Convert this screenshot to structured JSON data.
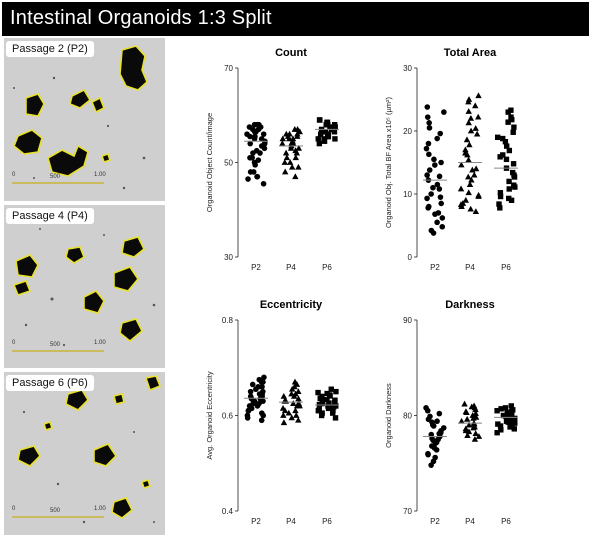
{
  "title": "Intestinal Organoids 1:3 Split",
  "colors": {
    "organoid_outline": "#e8e02a",
    "organoid_fill": "#0a0a0a",
    "background_field": "#cdcdcd"
  },
  "micrographs": [
    {
      "label": "Passage 2 (P2)",
      "scale_labels": [
        "0",
        "500",
        "1.00"
      ]
    },
    {
      "label": "Passage 4 (P4)",
      "scale_labels": [
        "0",
        "500",
        "1.00"
      ]
    },
    {
      "label": "Passage 6 (P6)",
      "scale_labels": [
        "0",
        "500",
        "1.00"
      ]
    }
  ],
  "chart_data": [
    {
      "type": "scatter",
      "title": "Count",
      "ylabel": "Organoid Object Count/image",
      "ylim": [
        30,
        70
      ],
      "yticks": [
        30,
        50,
        70
      ],
      "categories": [
        "P2",
        "P4",
        "P6"
      ],
      "markers": [
        "circle",
        "triangle",
        "square"
      ],
      "means": [
        54.5,
        53.5,
        57
      ],
      "series": [
        {
          "values": [
            45.5,
            46.5,
            47,
            48,
            49.5,
            50.5,
            51,
            52,
            52.5,
            53,
            53.5,
            54,
            54.5,
            55,
            55.5,
            56,
            56.5,
            57,
            57,
            57.5,
            58,
            58,
            58,
            57.5,
            57,
            56.5,
            56,
            55.5,
            55,
            54,
            52,
            51,
            50,
            48,
            47
          ]
        },
        {
          "values": [
            47,
            49,
            50,
            51,
            52,
            52.5,
            53,
            53.5,
            54,
            54,
            54.5,
            55,
            55,
            55.5,
            55.5,
            56,
            56,
            56.5,
            57,
            57,
            56,
            55,
            54,
            53,
            52,
            51,
            50,
            49,
            48
          ]
        },
        {
          "values": [
            54,
            54.5,
            55,
            55,
            55.5,
            55.5,
            56,
            56,
            56,
            56.5,
            56.5,
            57,
            57,
            57,
            57.5,
            57.5,
            58,
            58,
            58,
            58.5,
            58.5,
            59,
            59,
            56.5,
            57.5,
            55.5,
            56,
            58,
            57,
            55
          ]
        }
      ]
    },
    {
      "type": "scatter",
      "title": "Total Area",
      "ylabel": "Organoid Obj. Total BF Area x10⁵ (µm²)",
      "ylim": [
        0,
        30
      ],
      "yticks": [
        0,
        10,
        20,
        30
      ],
      "categories": [
        "P2",
        "P4",
        "P6"
      ],
      "markers": [
        "circle",
        "triangle",
        "square"
      ],
      "means": [
        12.2,
        15,
        14.1
      ],
      "series": [
        {
          "values": [
            3.8,
            4.2,
            4.8,
            5.5,
            6.2,
            7,
            7.8,
            8.5,
            9.3,
            10,
            10.8,
            11.5,
            12.2,
            13,
            13.8,
            14.6,
            15.5,
            16.3,
            17.2,
            18,
            18.8,
            19.6,
            20.5,
            21.3,
            22.2,
            23,
            23.8,
            9.5,
            11,
            12.8,
            15,
            6.8,
            8
          ]
        },
        {
          "values": [
            7.2,
            7.6,
            8,
            8.5,
            9,
            9.6,
            10.2,
            10.8,
            11.5,
            12.2,
            13,
            13.8,
            14.6,
            15.4,
            16.2,
            17,
            17.8,
            18.6,
            19.5,
            20.4,
            21.3,
            22.2,
            23.1,
            24,
            25,
            25.6,
            24.6,
            22,
            20,
            16.5,
            12.7,
            9.8,
            8.3,
            14
          ]
        },
        {
          "values": [
            7.8,
            8.4,
            9,
            9.6,
            10.2,
            10.8,
            11.4,
            12,
            12.7,
            13.4,
            14.1,
            14.8,
            15.5,
            16.2,
            16.9,
            17.6,
            18.3,
            19,
            19.8,
            20.6,
            21.4,
            22.2,
            23,
            23.3,
            21.8,
            18.8,
            15.9,
            13,
            11.1,
            9.3
          ]
        }
      ]
    },
    {
      "type": "scatter",
      "title": "Eccentricity",
      "ylabel": "Avg. Organoid Eccentricity",
      "ylim": [
        0.4,
        0.8
      ],
      "yticks": [
        0.4,
        0.6,
        0.8
      ],
      "categories": [
        "P2",
        "P4",
        "P6"
      ],
      "markers": [
        "circle",
        "triangle",
        "square"
      ],
      "means": [
        0.636,
        0.628,
        0.622
      ],
      "series": [
        {
          "values": [
            0.59,
            0.595,
            0.6,
            0.605,
            0.61,
            0.615,
            0.62,
            0.625,
            0.63,
            0.635,
            0.64,
            0.645,
            0.65,
            0.655,
            0.66,
            0.665,
            0.67,
            0.675,
            0.68,
            0.62,
            0.63,
            0.64,
            0.65,
            0.66,
            0.61,
            0.6,
            0.67,
            0.645,
            0.635,
            0.625
          ]
        },
        {
          "values": [
            0.585,
            0.59,
            0.595,
            0.6,
            0.605,
            0.61,
            0.615,
            0.62,
            0.625,
            0.63,
            0.635,
            0.64,
            0.645,
            0.65,
            0.655,
            0.66,
            0.665,
            0.67,
            0.62,
            0.63,
            0.64,
            0.61,
            0.6,
            0.625,
            0.645
          ]
        },
        {
          "values": [
            0.595,
            0.6,
            0.605,
            0.61,
            0.612,
            0.615,
            0.618,
            0.62,
            0.623,
            0.626,
            0.63,
            0.633,
            0.636,
            0.64,
            0.643,
            0.646,
            0.65,
            0.655,
            0.61,
            0.62,
            0.625,
            0.615,
            0.632,
            0.641,
            0.605,
            0.648,
            0.628
          ]
        }
      ]
    },
    {
      "type": "scatter",
      "title": "Darkness",
      "ylabel": "Organoid Darkness",
      "ylim": [
        70,
        90
      ],
      "yticks": [
        70,
        80,
        90
      ],
      "categories": [
        "P2",
        "P4",
        "P6"
      ],
      "markers": [
        "circle",
        "triangle",
        "square"
      ],
      "means": [
        77.8,
        79.2,
        79.8
      ],
      "series": [
        {
          "values": [
            74.8,
            75.2,
            75.6,
            76,
            76.4,
            76.8,
            77.1,
            77.4,
            77.6,
            77.8,
            78,
            78.2,
            78.4,
            78.7,
            79,
            79.3,
            79.6,
            79.9,
            80.2,
            80.5,
            80.8,
            77.5,
            78.1,
            76.6,
            79.4,
            78.9,
            77.2,
            75.9
          ]
        },
        {
          "values": [
            77.5,
            77.8,
            78.1,
            78.4,
            78.6,
            78.8,
            79,
            79.2,
            79.4,
            79.6,
            79.8,
            80,
            80.2,
            80.4,
            80.6,
            80.8,
            81,
            81.2,
            78.3,
            79.1,
            79.7,
            80.3,
            77.9,
            80.9,
            78.7
          ]
        },
        {
          "values": [
            78.2,
            78.5,
            78.8,
            79,
            79.2,
            79.4,
            79.6,
            79.7,
            79.8,
            79.9,
            80,
            80.1,
            80.2,
            80.4,
            80.6,
            80.8,
            81,
            79.5,
            80.3,
            78.9,
            79.3,
            80.5,
            79.1,
            80.7,
            78.6
          ]
        }
      ]
    }
  ]
}
